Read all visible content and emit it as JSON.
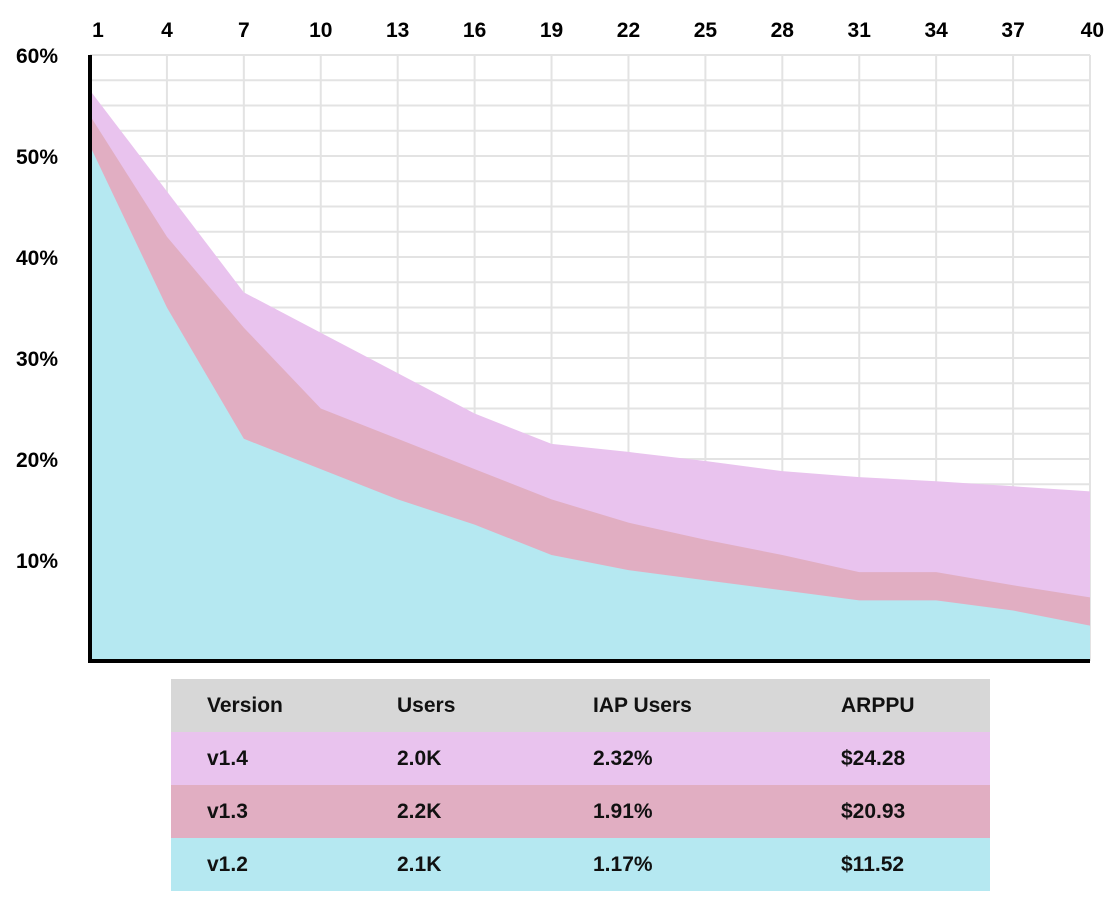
{
  "chart_data": {
    "type": "area",
    "x": [
      1,
      4,
      7,
      10,
      13,
      16,
      19,
      22,
      25,
      28,
      31,
      34,
      37,
      40
    ],
    "x_tick_labels": [
      "1",
      "4",
      "7",
      "10",
      "13",
      "16",
      "19",
      "22",
      "25",
      "28",
      "31",
      "34",
      "37",
      "40"
    ],
    "y_tick_labels": [
      "60%",
      "50%",
      "40%",
      "30%",
      "20%",
      "10%"
    ],
    "ylim": [
      0,
      60
    ],
    "grid": true,
    "series": [
      {
        "name": "v1.4",
        "color": "#e9c3ee",
        "values": [
          56.5,
          46.5,
          36.5,
          32.5,
          28.5,
          24.5,
          21.5,
          20.7,
          19.8,
          18.8,
          18.2,
          17.8,
          17.3,
          16.8
        ]
      },
      {
        "name": "v1.3",
        "color": "#e1aec2",
        "values": [
          54,
          42,
          33,
          25,
          22,
          19,
          16,
          13.7,
          12,
          10.5,
          8.8,
          8.8,
          7.5,
          6.3
        ]
      },
      {
        "name": "v1.2",
        "color": "#b5e8f1",
        "values": [
          51,
          35,
          22,
          19,
          16,
          13.5,
          10.5,
          9,
          8,
          7,
          6,
          6,
          5,
          3.5
        ]
      }
    ]
  },
  "table": {
    "headers": [
      "Version",
      "Users",
      "IAP Users",
      "ARPPU"
    ],
    "header_color": "#d7d7d7",
    "rows": [
      {
        "cells": [
          "v1.4",
          "2.0K",
          "2.32%",
          "$24.28"
        ],
        "color": "#e9c3ee"
      },
      {
        "cells": [
          "v1.3",
          "2.2K",
          "1.91%",
          "$20.93"
        ],
        "color": "#e1aec2"
      },
      {
        "cells": [
          "v1.2",
          "2.1K",
          "1.17%",
          "$11.52"
        ],
        "color": "#b5e8f1"
      }
    ]
  }
}
